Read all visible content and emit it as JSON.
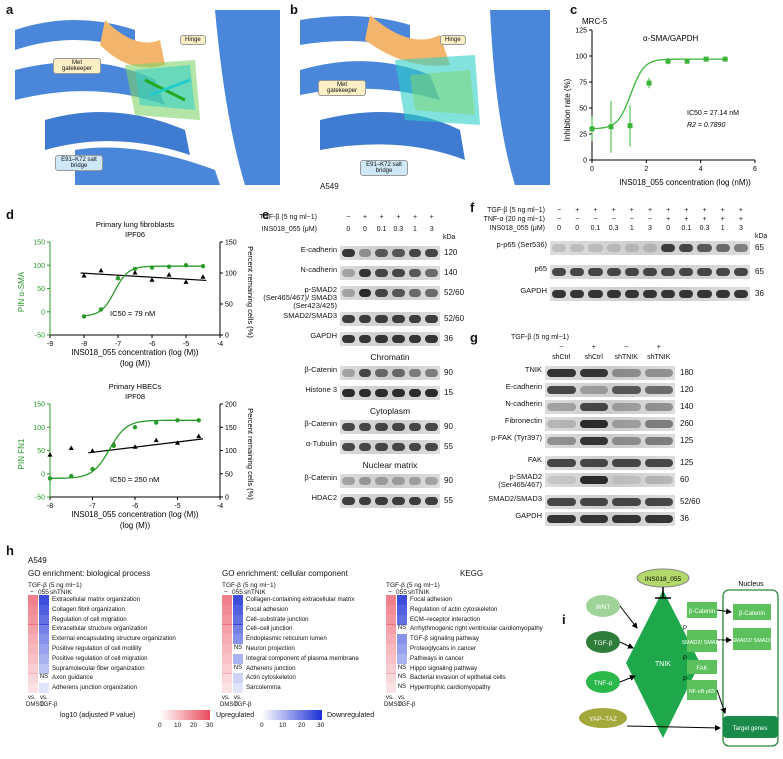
{
  "panels": {
    "a": {
      "letter": "a",
      "labels": {
        "met": "Met gatekeeper",
        "hinge": "Hinge",
        "salt": "E91–K72 salt bridge"
      }
    },
    "b": {
      "letter": "b",
      "labels": {
        "met": "Met gatekeeper",
        "hinge": "Hinge",
        "salt": "E91–K72 salt bridge"
      },
      "caption": "A549"
    },
    "c": {
      "letter": "c",
      "cell": "MRC-5",
      "title": "α-SMA/GAPDH",
      "ylabel": "Inhibition rate (%)",
      "xlabel": "INS018_055 concentration (log (nM))",
      "ic50": "IC50 = 27.14 nM",
      "r2": "R2 = 0.7890"
    },
    "d": {
      "letter": "d"
    },
    "e": {
      "letter": "e"
    },
    "f": {
      "letter": "f"
    },
    "g": {
      "letter": "g"
    },
    "h": {
      "letter": "h"
    },
    "i": {
      "letter": "i"
    }
  },
  "chart_data": [
    {
      "type": "scatter",
      "panel": "c",
      "title": "α-SMA/GAPDH",
      "xlabel": "INS018_055 concentration (log (nM))",
      "ylabel": "Inhibition rate (%)",
      "xlim": [
        0,
        6
      ],
      "ylim": [
        0,
        125
      ],
      "xticks": [
        0,
        2,
        4,
        6
      ],
      "yticks": [
        0,
        25,
        50,
        75,
        100,
        125
      ],
      "series": [
        {
          "x": [
            0,
            0.7,
            1.4,
            2.1,
            2.8,
            3.5,
            4.2,
            4.9
          ],
          "y": [
            30,
            32,
            33,
            74,
            95,
            95,
            97,
            97
          ]
        }
      ]
    },
    {
      "type": "scatter",
      "panel": "d-top",
      "title": "Primary lung fibroblasts",
      "subtitle": "IPF06",
      "xlabel": "INS018_055 concentration (log (M))",
      "ylabel": "PIN α-SMA",
      "y2label": "Percent remaining cells (%)",
      "ic50": "IC50 = 79 nM",
      "xlim": [
        -9,
        -4
      ],
      "ylim": [
        -50,
        150
      ],
      "y2lim": [
        0,
        150
      ],
      "xticks": [
        -9,
        -8,
        -7,
        -6,
        -5,
        -4
      ],
      "yticks": [
        -50,
        0,
        50,
        100,
        150
      ],
      "y2ticks": [
        0,
        50,
        100,
        150
      ],
      "series": [
        {
          "x": [
            -8,
            -7.5,
            -7,
            -6.5,
            -6,
            -5.5,
            -5,
            -4.5
          ],
          "y": [
            -10,
            5,
            72,
            92,
            95,
            97,
            100,
            98
          ]
        }
      ]
    },
    {
      "type": "scatter",
      "panel": "d-bottom",
      "title": "Primary HBECs",
      "subtitle": "IPF08",
      "xlabel": "INS018_055 concentration (log (M))",
      "ylabel": "PIN FN1",
      "y2label": "Percent remaining cells (%)",
      "ic50": "IC50 = 250 nM",
      "xlim": [
        -8,
        -4
      ],
      "ylim": [
        -50,
        150
      ],
      "y2lim": [
        0,
        200
      ],
      "xticks": [
        -8,
        -7,
        -6,
        -5,
        -4
      ],
      "yticks": [
        -50,
        0,
        50,
        100,
        150
      ],
      "y2ticks": [
        0,
        50,
        100,
        150,
        200
      ],
      "series": [
        {
          "x": [
            -8,
            -7.5,
            -7,
            -6.5,
            -6,
            -5.5,
            -5,
            -4.5
          ],
          "y": [
            -10,
            -5,
            10,
            60,
            100,
            110,
            115,
            115
          ]
        }
      ]
    }
  ],
  "e": {
    "tgf": "TGF-β (5 ng ml−1)",
    "ins": "INS018_055 (μM)",
    "kda": "kDa",
    "tgf_vals": [
      "−",
      "+",
      "+",
      "+",
      "+",
      "+"
    ],
    "ins_vals": [
      "0",
      "0",
      "0.1",
      "0.3",
      "1",
      "3"
    ],
    "rows": [
      [
        "E-cadherin",
        "120"
      ],
      [
        "N-cadherin",
        "140"
      ],
      [
        "p-SMAD2 (Ser465/467)/ SMAD3 (Ser423/425)",
        "52/60"
      ],
      [
        "SMAD2/SMAD3",
        "52/60"
      ],
      [
        "GAPDH",
        "36"
      ]
    ],
    "chromatin": "Chromatin",
    "chrom_rows": [
      [
        "β-Catenin",
        "90"
      ],
      [
        "Histone 3",
        "15"
      ]
    ],
    "cytoplasm": "Cytoplasm",
    "cyto_rows": [
      [
        "β-Catenin",
        "90"
      ],
      [
        "α-Tubulin",
        "55"
      ]
    ],
    "nuclear": "Nuclear matrix",
    "nuc_rows": [
      [
        "β-Catenin",
        "90"
      ],
      [
        "HDAC2",
        "55"
      ]
    ]
  },
  "f": {
    "tgf": "TGF-β (5 ng ml−1)",
    "tnf": "TNF-α (20 ng ml−1)",
    "ins": "INS018_055 (μM)",
    "kda": "kDa",
    "tgf_vals": [
      "−",
      "+",
      "+",
      "+",
      "+",
      "+",
      "+",
      "+",
      "+",
      "+",
      "+"
    ],
    "tnf_vals": [
      "−",
      "−",
      "−",
      "−",
      "−",
      "−",
      "+",
      "+",
      "+",
      "+",
      "+"
    ],
    "ins_vals": [
      "0",
      "0",
      "0.1",
      "0.3",
      "1",
      "3",
      "0",
      "0.1",
      "0.3",
      "1",
      "3"
    ],
    "rows": [
      [
        "p-p65 (Ser536)",
        "65"
      ],
      [
        "p65",
        "65"
      ],
      [
        "GAPDH",
        "36"
      ]
    ]
  },
  "g": {
    "tgf": "TGF-β (5 ng ml−1)",
    "tgf_vals": [
      "−",
      "+",
      "−",
      "+"
    ],
    "cols": [
      "shCtrl",
      "shCtrl",
      "shTNIK",
      "shTNIK"
    ],
    "rows": [
      [
        "TNIK",
        "180"
      ],
      [
        "E-cadherin",
        "120"
      ],
      [
        "N-cadherin",
        "140"
      ],
      [
        "Fibronectin",
        "260"
      ],
      [
        "p-FAK (Tyr397)",
        "125"
      ],
      [
        "FAK",
        "125"
      ],
      [
        "p-SMAD2 (Ser465/467)",
        "60"
      ],
      [
        "SMAD2/SMAD3",
        "52/60"
      ],
      [
        "GAPDH",
        "36"
      ]
    ]
  },
  "h": {
    "cell": "A549",
    "bp_title": "GO enrichment: biological process",
    "cc_title": "GO enrichment: cellular component",
    "kegg_title": "KEGG",
    "tgf": "TGF-β (5 ng ml−1)",
    "col_dash": "−",
    "col_055": "055",
    "col_sh": "shTNIK",
    "ns": "NS",
    "vs": "vs.",
    "dmso": "DMSO",
    "tgfb": "TGF-β",
    "bp_terms": [
      "Extracellular matrix organization",
      "Collagen fibril organization",
      "Regulation of cell migration",
      "Extracellular structure organization",
      "External encapsulating structure organization",
      "Positive regulation of cell motility",
      "Positive regulation of cell migration",
      "Supramolecular fiber organization",
      "Axon guidance",
      "Adherens junction organization"
    ],
    "cc_terms": [
      "Collagen-containing extracellular matrix",
      "Focal adhesion",
      "Cell–substrate junction",
      "Cell–cell junction",
      "Endoplasmic reticulum lumen",
      "Neuron projection",
      "Integral component of plasma membrane",
      "Adherens junction",
      "Actin cytoskeleton",
      "Sarcolemma"
    ],
    "kegg_terms": [
      "Focal adhesion",
      "Regulation of actin cytoskeleton",
      "ECM–receptor interaction",
      "Arrhythmogenic right ventricular cardiomyopathy",
      "TGF-β signaling pathway",
      "Proteoglycans in cancer",
      "Pathways in cancer",
      "Hippo signaling pathway",
      "Bacterial invasion of epithelial cells",
      "Hypertrophic cardiomyopathy"
    ],
    "legend_label": "log10 (adjusted P value)",
    "up": "Upregulated",
    "down": "Downregulated",
    "ticks_up": [
      "0",
      "10",
      "20",
      "30"
    ],
    "ticks_down": [
      "0",
      "10",
      "20",
      "30"
    ]
  },
  "i": {
    "drug": "INS018_055",
    "wnt": "WNT",
    "tgf": "TGF-β",
    "tnf": "TNF-α",
    "yap": "YAP–TAZ",
    "tnik": "TNIK",
    "bcat": "β-Catenin",
    "smad": "SMAD2/ SMAD3",
    "fak": "FAK",
    "nfkb": "NF-κB p65",
    "p": "P",
    "nucleus": "Nucleus",
    "nbcat": "β-Catenin",
    "nsmad": "SMAD2/ SMAD3",
    "target": "Target genes"
  }
}
